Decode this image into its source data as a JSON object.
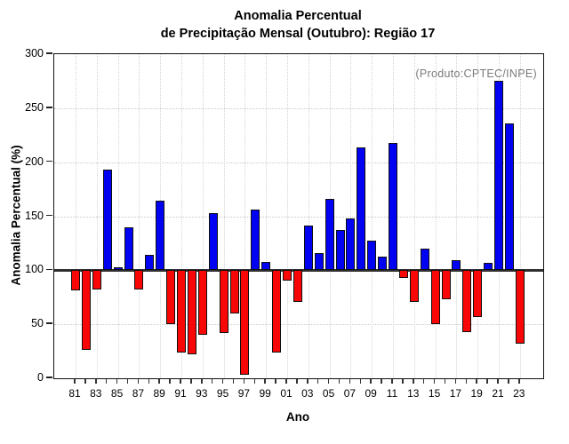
{
  "title": {
    "line1": "Anomalia Percentual",
    "line2": "de Precipitação Mensal (Outubro): Região 17"
  },
  "annotation": "(Produto:CPTEC/INPE)",
  "chart_data": {
    "type": "bar",
    "title": "Anomalia Percentual de Precipitação Mensal (Outubro): Região 17",
    "xlabel": "Ano",
    "ylabel": "Anomalia Percentual (%)",
    "ylim": [
      0,
      300
    ],
    "yticks": [
      0,
      50,
      100,
      150,
      200,
      250,
      300
    ],
    "baseline": 100,
    "grid": "dotted",
    "legend": "none",
    "x_tick_labels": [
      "81",
      "83",
      "85",
      "87",
      "89",
      "91",
      "93",
      "95",
      "97",
      "99",
      "01",
      "03",
      "05",
      "07",
      "09",
      "11",
      "13",
      "15",
      "17",
      "19",
      "21",
      "23"
    ],
    "categories": [
      "81",
      "82",
      "83",
      "84",
      "85",
      "86",
      "87",
      "88",
      "89",
      "90",
      "91",
      "92",
      "93",
      "94",
      "95",
      "96",
      "97",
      "98",
      "99",
      "00",
      "01",
      "02",
      "03",
      "04",
      "05",
      "06",
      "07",
      "08",
      "09",
      "10",
      "11",
      "12",
      "13",
      "14",
      "15",
      "16",
      "17",
      "18",
      "19",
      "20",
      "21",
      "22",
      "23"
    ],
    "values": [
      81,
      26,
      82,
      193,
      103,
      140,
      82,
      114,
      164,
      50,
      24,
      22,
      40,
      153,
      42,
      60,
      3,
      156,
      108,
      24,
      90,
      71,
      141,
      116,
      166,
      137,
      148,
      214,
      127,
      113,
      218,
      93,
      71,
      120,
      50,
      73,
      109,
      43,
      57,
      107,
      275,
      236,
      32
    ],
    "colors": {
      "above_baseline": "#0202f2",
      "below_baseline": "#f90606",
      "bar_border": "#101010",
      "baseline_line": "#2f2f2f",
      "annotation_text": "#7b7b7b"
    }
  }
}
